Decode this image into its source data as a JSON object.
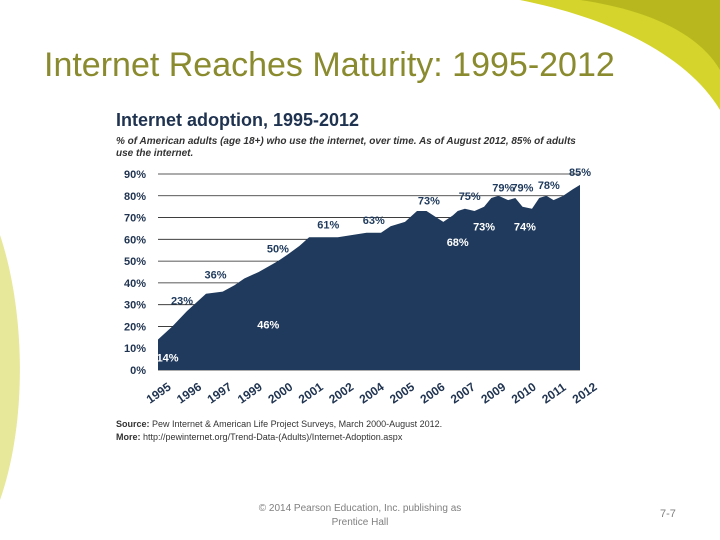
{
  "slide": {
    "title": "Internet Reaches Maturity: 1995-2012",
    "footer_copyright": "© 2014 Pearson Education, Inc. publishing as Prentice Hall",
    "page_number": "7-7"
  },
  "colors": {
    "area": "#1f3a5c",
    "title": "#8a8a2e",
    "accent_deco": "#d4d42c",
    "label": "#1f3a5c"
  },
  "chart_data": {
    "type": "area",
    "title": "Internet adoption, 1995-2012",
    "subtitle": "% of American adults (age 18+) who use the internet, over time. As of August 2012, 85% of adults use the internet.",
    "x_tick_labels": [
      "1995",
      "1996",
      "1997",
      "1999",
      "2000",
      "2001",
      "2002",
      "2004",
      "2005",
      "2006",
      "2007",
      "2009",
      "2010",
      "2011",
      "2012"
    ],
    "y_tick_labels": [
      "0%",
      "10%",
      "20%",
      "30%",
      "40%",
      "50%",
      "60%",
      "70%",
      "80%",
      "90%"
    ],
    "ylim": [
      0,
      90
    ],
    "xlim": [
      1995,
      2012.6
    ],
    "series": [
      {
        "x": [
          1995,
          1995.6,
          1996.2,
          1997.0,
          1997.7,
          1998.2,
          1998.6,
          1999.2,
          2000.0,
          2000.4,
          2000.9,
          2001.3,
          2001.9,
          2002.5,
          2003.1,
          2003.7,
          2004.3,
          2004.7,
          2005.3,
          2005.8,
          2006.2,
          2006.9,
          2007.3,
          2007.5,
          2007.8,
          2008.2,
          2008.6,
          2008.9,
          2009.2,
          2009.6,
          2009.9,
          2010.2,
          2010.6,
          2010.9,
          2011.2,
          2011.5,
          2011.9,
          2012.3,
          2012.6
        ],
        "y": [
          14,
          20,
          27,
          35,
          36,
          39,
          42,
          45,
          50,
          53,
          57,
          61,
          61,
          61,
          62,
          63,
          63,
          66,
          68,
          73,
          73,
          68,
          71,
          73,
          74,
          73,
          75,
          79,
          80,
          78,
          79,
          75,
          74,
          79,
          80,
          78,
          80,
          83,
          85
        ]
      }
    ],
    "annotations": [
      {
        "text": "14%",
        "x": 1995.4,
        "y": 4
      },
      {
        "text": "23%",
        "x": 1996.0,
        "y": 30
      },
      {
        "text": "36%",
        "x": 1997.4,
        "y": 42
      },
      {
        "text": "46%",
        "x": 1999.6,
        "y": 19
      },
      {
        "text": "50%",
        "x": 2000.0,
        "y": 54
      },
      {
        "text": "61%",
        "x": 2002.1,
        "y": 65
      },
      {
        "text": "63%",
        "x": 2004.0,
        "y": 67
      },
      {
        "text": "73%",
        "x": 2006.3,
        "y": 76
      },
      {
        "text": "68%",
        "x": 2007.5,
        "y": 57
      },
      {
        "text": "75%",
        "x": 2008.0,
        "y": 78
      },
      {
        "text": "73%",
        "x": 2008.6,
        "y": 64
      },
      {
        "text": "79%",
        "x": 2009.4,
        "y": 82
      },
      {
        "text": "79%",
        "x": 2010.2,
        "y": 82
      },
      {
        "text": "74%",
        "x": 2010.3,
        "y": 64
      },
      {
        "text": "78%",
        "x": 2011.3,
        "y": 83
      },
      {
        "text": "85%",
        "x": 2012.6,
        "y": 89
      }
    ],
    "grid": "major y gridlines",
    "legend": "none"
  },
  "source": {
    "source_label": "Source:",
    "source_text": "Pew Internet & American Life Project Surveys, March 2000-August 2012.",
    "more_label": "More:",
    "more_text": "http://pewinternet.org/Trend-Data-(Adults)/Internet-Adoption.aspx"
  }
}
